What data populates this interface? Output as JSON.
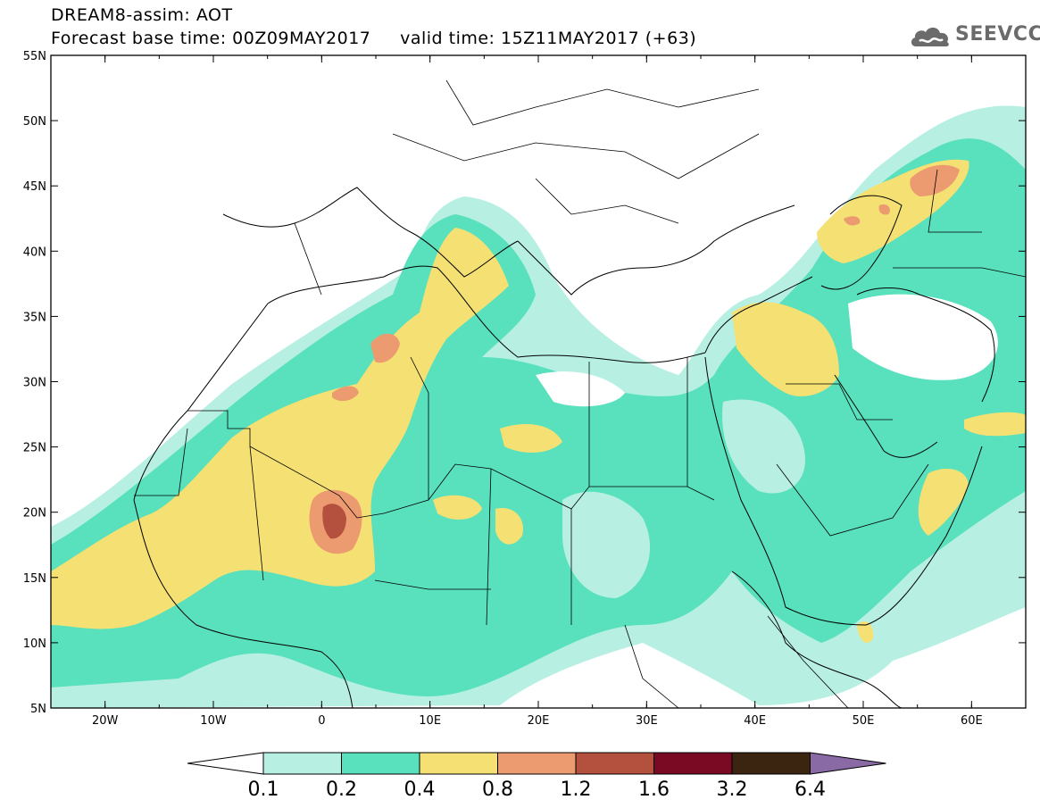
{
  "header": {
    "title_line1": "DREAM8-assim: AOT",
    "title_line2": "Forecast base time: 00Z09MAY2017     valid time: 15Z11MAY2017 (+63)"
  },
  "logo": {
    "text": "SEEVCCC",
    "icon": "cloud-icon"
  },
  "map": {
    "lat_range": [
      5,
      55
    ],
    "lon_range": [
      -25,
      65
    ],
    "lat_ticks": [
      "55N",
      "50N",
      "45N",
      "40N",
      "35N",
      "30N",
      "25N",
      "20N",
      "15N",
      "10N",
      "5N"
    ],
    "lon_ticks": [
      "20W",
      "10W",
      "0",
      "10E",
      "20E",
      "30E",
      "40E",
      "50E",
      "60E"
    ]
  },
  "colorbar": {
    "labels": [
      "0.1",
      "0.2",
      "0.4",
      "0.8",
      "1.2",
      "1.6",
      "3.2",
      "6.4"
    ],
    "colors": [
      "#ffffff",
      "#b7f0e3",
      "#59e0bc",
      "#f5e173",
      "#ec9a6f",
      "#b4503e",
      "#7a0a24",
      "#3b2410",
      "#8a6aa4"
    ]
  }
}
